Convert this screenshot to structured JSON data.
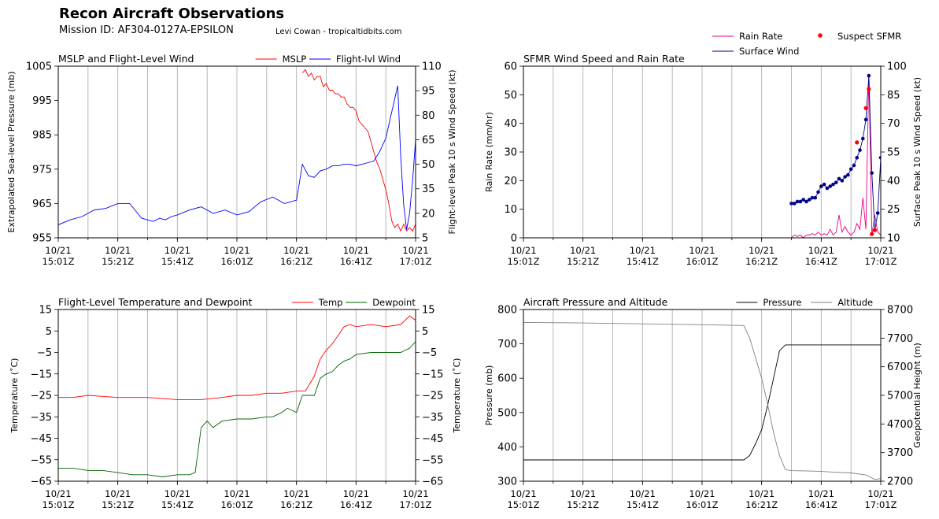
{
  "header": {
    "title": "Recon Aircraft Observations",
    "mission": "Mission ID: AF304-0127A-EPSILON",
    "credit": "Levi Cowan - tropicaltidbits.com"
  },
  "colors": {
    "mslp": "#ff0000",
    "flight_wind": "#0000ff",
    "rain_rate": "#e6007e",
    "surface_wind": "#00008b",
    "suspect_sfmr": "#ff0000",
    "temp": "#ff0000",
    "dewpoint": "#006400",
    "pressure": "#000000",
    "altitude": "#808080",
    "grid": "#b0b0b0"
  },
  "time_axis": {
    "labels": [
      "10/21\n15:01Z",
      "10/21\n15:21Z",
      "10/21\n15:41Z",
      "10/21\n16:01Z",
      "10/21\n16:21Z",
      "10/21\n16:41Z",
      "10/21\n17:01Z"
    ]
  },
  "chart_data": [
    {
      "id": "wind",
      "type": "line",
      "title": "MSLP and Flight-Level Wind",
      "ylabel_left": "Extrapolated Sea-level Pressure (mb)",
      "ylabel_right": "Flight-level Peak 10 s Wind Speed (kt)",
      "ylim_left": [
        955,
        1005
      ],
      "ylim_right": [
        5,
        110
      ],
      "yticks_left": [
        955,
        965,
        975,
        985,
        995,
        1005
      ],
      "yticks_right": [
        5,
        20,
        35,
        50,
        65,
        80,
        95,
        110
      ],
      "xlim": [
        0,
        120
      ],
      "legend": [
        "MSLP",
        "Flight-lvl Wind"
      ],
      "series": [
        {
          "name": "MSLP",
          "axis": "left",
          "color_key": "mslp",
          "x": [
            82,
            83,
            84,
            85,
            86,
            87,
            88,
            89,
            90,
            91,
            92,
            93,
            94,
            95,
            96,
            97,
            98,
            99,
            100,
            101,
            102,
            103,
            104,
            105,
            106,
            107,
            108,
            109,
            110,
            111,
            112,
            113,
            114,
            115,
            116,
            117,
            118,
            119,
            120
          ],
          "y": [
            1003,
            1004,
            1002,
            1003,
            1001,
            1002,
            1002,
            999,
            1000,
            998,
            998,
            997,
            997,
            996,
            996,
            994,
            993,
            993,
            992,
            989,
            988,
            987,
            986,
            983,
            980,
            977,
            975,
            972,
            969,
            965,
            960,
            958,
            959,
            957,
            959,
            957,
            958,
            957,
            959
          ]
        },
        {
          "name": "Flight-lvl Wind",
          "axis": "right",
          "color_key": "flight_wind",
          "x": [
            0,
            4,
            8,
            12,
            16,
            20,
            24,
            28,
            30,
            32,
            34,
            36,
            38,
            40,
            44,
            48,
            52,
            56,
            60,
            64,
            68,
            72,
            76,
            78,
            80,
            82,
            84,
            86,
            88,
            90,
            92,
            94,
            96,
            98,
            100,
            102,
            104,
            106,
            108,
            110,
            112,
            114,
            115,
            116,
            117,
            118,
            119,
            120
          ],
          "y": [
            13,
            16,
            18,
            22,
            23,
            26,
            26,
            17,
            16,
            15,
            17,
            16,
            18,
            19,
            22,
            24,
            20,
            22,
            19,
            21,
            27,
            30,
            26,
            27,
            28,
            50,
            43,
            42,
            46,
            47,
            49,
            49,
            50,
            50,
            49,
            50,
            51,
            52,
            58,
            66,
            82,
            98,
            55,
            25,
            10,
            20,
            40,
            65
          ]
        }
      ]
    },
    {
      "id": "sfmr",
      "type": "line",
      "title": "SFMR Wind Speed and Rain Rate",
      "ylabel_left": "Rain Rate (mm/hr)",
      "ylabel_right": "Surface Peak 10 s Wind Speed (kt)",
      "ylim_left": [
        0,
        60
      ],
      "ylim_right": [
        10,
        100
      ],
      "yticks_left": [
        0,
        10,
        20,
        30,
        40,
        50,
        60
      ],
      "yticks_right": [
        10,
        25,
        40,
        55,
        70,
        85,
        100
      ],
      "xlim": [
        0,
        120
      ],
      "legend": [
        "Rain Rate",
        "Surface Wind",
        "Suspect SFMR"
      ],
      "series": [
        {
          "name": "Rain Rate",
          "axis": "left",
          "color_key": "rain_rate",
          "x": [
            90,
            91,
            92,
            93,
            94,
            95,
            96,
            97,
            98,
            99,
            100,
            101,
            102,
            103,
            104,
            105,
            106,
            107,
            108,
            109,
            110,
            111,
            112,
            113,
            114,
            115,
            116,
            117,
            118,
            119,
            120
          ],
          "y": [
            0,
            1,
            0.5,
            1,
            0,
            1,
            1,
            1.5,
            1,
            2,
            1,
            1.5,
            1,
            3,
            1,
            2,
            8,
            2,
            4,
            2,
            1,
            2,
            5,
            3,
            14,
            3,
            57,
            1,
            8,
            2,
            1
          ]
        },
        {
          "name": "Surface Wind",
          "axis": "right",
          "color_key": "surface_wind",
          "x": [
            90,
            91,
            92,
            93,
            94,
            95,
            96,
            97,
            98,
            99,
            100,
            101,
            102,
            103,
            104,
            105,
            106,
            107,
            108,
            109,
            110,
            111,
            112,
            113,
            114,
            115,
            116,
            117,
            118,
            119,
            120
          ],
          "y": [
            28,
            28,
            29,
            29,
            30,
            29,
            30,
            31,
            31,
            34,
            37,
            38,
            36,
            37,
            38,
            39,
            41,
            40,
            42,
            43,
            46,
            48,
            52,
            56,
            62,
            72,
            95,
            44,
            14,
            23,
            52
          ]
        },
        {
          "name": "Suspect SFMR",
          "axis": "right",
          "color_key": "suspect_sfmr",
          "style": "points",
          "x": [
            112,
            115,
            116,
            117,
            118
          ],
          "y": [
            60,
            78,
            88,
            12,
            14
          ]
        }
      ]
    },
    {
      "id": "temp",
      "type": "line",
      "title": "Flight-Level Temperature and Dewpoint",
      "ylabel_left": "Temperature (˚C)",
      "ylabel_right": "Temperature (˚C)",
      "ylim_left": [
        -65,
        15
      ],
      "ylim_right": [
        -65,
        15
      ],
      "yticks_left": [
        -65,
        -55,
        -45,
        -35,
        -25,
        -15,
        -5,
        5,
        15
      ],
      "yticks_right": [
        -65,
        -55,
        -45,
        -35,
        -25,
        -15,
        -5,
        5,
        15
      ],
      "xlim": [
        0,
        120
      ],
      "legend": [
        "Temp",
        "Dewpoint"
      ],
      "series": [
        {
          "name": "Temp",
          "axis": "left",
          "color_key": "temp",
          "x": [
            0,
            5,
            10,
            20,
            30,
            40,
            48,
            55,
            60,
            65,
            70,
            75,
            80,
            83,
            86,
            88,
            90,
            92,
            94,
            96,
            98,
            100,
            105,
            110,
            115,
            118,
            120
          ],
          "y": [
            -26,
            -26,
            -25,
            -26,
            -26,
            -27,
            -27,
            -26,
            -25,
            -25,
            -24,
            -24,
            -23,
            -23,
            -16,
            -8,
            -4,
            -1,
            3,
            7,
            8,
            7,
            8,
            7,
            8,
            12,
            10
          ]
        },
        {
          "name": "Dewpoint",
          "axis": "left",
          "color_key": "dewpoint",
          "x": [
            0,
            5,
            10,
            15,
            20,
            25,
            30,
            35,
            40,
            44,
            46,
            48,
            50,
            52,
            55,
            60,
            65,
            70,
            72,
            75,
            77,
            80,
            82,
            84,
            86,
            88,
            90,
            92,
            94,
            96,
            98,
            100,
            105,
            110,
            115,
            118,
            120
          ],
          "y": [
            -59,
            -59,
            -60,
            -60,
            -61,
            -62,
            -62,
            -63,
            -62,
            -62,
            -61,
            -40,
            -37,
            -40,
            -37,
            -36,
            -36,
            -35,
            -35,
            -33,
            -31,
            -33,
            -25,
            -25,
            -25,
            -17,
            -15,
            -14,
            -11,
            -9,
            -8,
            -6,
            -5,
            -5,
            -5,
            -3,
            0
          ]
        }
      ]
    },
    {
      "id": "pres",
      "type": "line",
      "title": "Aircraft Pressure and Altitude",
      "ylabel_left": "Pressure (mb)",
      "ylabel_right": "Geopotential Height (m)",
      "ylim_left": [
        300,
        800
      ],
      "ylim_right": [
        2700,
        8700
      ],
      "yticks_left": [
        300,
        400,
        500,
        600,
        700,
        800
      ],
      "yticks_right": [
        2700,
        3700,
        4700,
        5700,
        6700,
        7700,
        8700
      ],
      "xlim": [
        0,
        120
      ],
      "legend": [
        "Pressure",
        "Altitude"
      ],
      "series": [
        {
          "name": "Pressure",
          "axis": "left",
          "color_key": "pressure",
          "x": [
            0,
            20,
            40,
            60,
            74,
            76,
            78,
            80,
            82,
            84,
            86,
            88,
            90,
            95,
            100,
            105,
            110,
            115,
            120
          ],
          "y": [
            362,
            362,
            362,
            362,
            362,
            375,
            410,
            450,
            520,
            600,
            680,
            697,
            697,
            697,
            697,
            697,
            697,
            697,
            697
          ]
        },
        {
          "name": "Altitude",
          "axis": "right",
          "color_key": "altitude",
          "x": [
            0,
            20,
            40,
            60,
            74,
            76,
            78,
            80,
            82,
            84,
            86,
            88,
            90,
            95,
            100,
            105,
            110,
            115,
            118,
            120
          ],
          "y": [
            8250,
            8230,
            8200,
            8170,
            8140,
            7700,
            7000,
            6300,
            5400,
            4400,
            3600,
            3100,
            3070,
            3060,
            3040,
            3010,
            2990,
            2920,
            2760,
            2790
          ]
        }
      ]
    }
  ]
}
